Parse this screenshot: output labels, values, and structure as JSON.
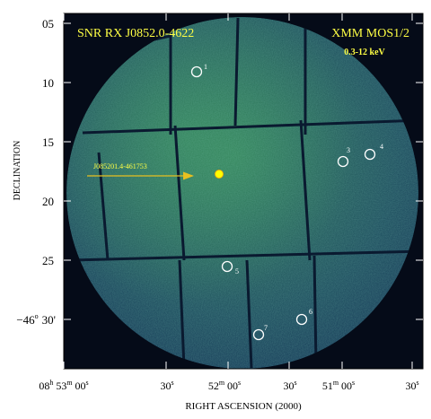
{
  "figure": {
    "title_left": "SNR  RX J0852.0-4622",
    "title_right": "XMM MOS1/2",
    "energy": "0.3-12 keV",
    "source_label": "J085201.4-461753",
    "y_axis_label": "DECLINATION",
    "x_axis_label": "RIGHT ASCENSION (2000)",
    "y_ticks": [
      "05",
      "10",
      "15",
      "20",
      "25"
    ],
    "y_tick_last": {
      "deg": "−46",
      "deg_sup": "o",
      "min": "30'"
    },
    "x_ticks": [
      {
        "parts": [
          [
            "08",
            "h"
          ],
          [
            "53",
            "m"
          ],
          [
            "00",
            "s"
          ]
        ]
      },
      {
        "parts": [
          [
            "30",
            "s"
          ]
        ]
      },
      {
        "parts": [
          [
            "52",
            "m"
          ],
          [
            "00",
            "s"
          ]
        ]
      },
      {
        "parts": [
          [
            "30",
            "s"
          ]
        ]
      },
      {
        "parts": [
          [
            "51",
            "m"
          ],
          [
            "00",
            "s"
          ]
        ]
      },
      {
        "parts": [
          [
            "30",
            "s"
          ]
        ]
      }
    ],
    "sources": [
      {
        "id": "1"
      },
      {
        "id": "3"
      },
      {
        "id": "4"
      },
      {
        "id": "5"
      },
      {
        "id": "6"
      },
      {
        "id": "7"
      }
    ],
    "colors": {
      "title": "#ffff44",
      "frame": "#000000",
      "source_circle": "#ffffff",
      "source_dot": "#ffff00",
      "arrow": "#e8c020"
    }
  }
}
